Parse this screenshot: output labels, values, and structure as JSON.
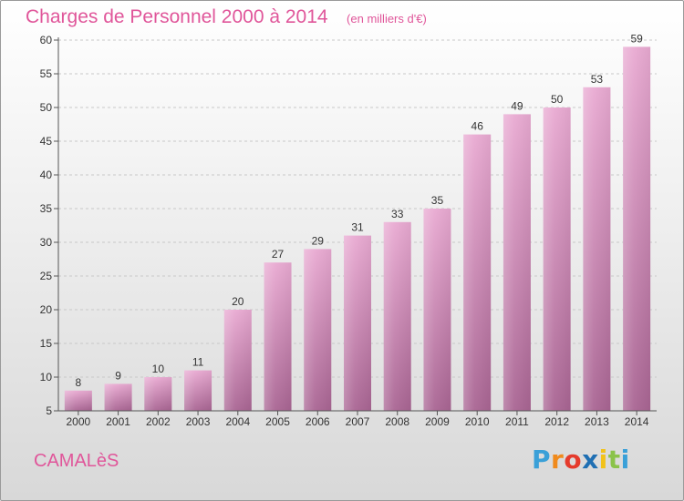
{
  "header": {
    "title": "Charges de Personnel 2000 à 2014",
    "subtitle": "(en milliers d'€)"
  },
  "footer": {
    "commune": "CAMALèS",
    "brand": {
      "letters": [
        "P",
        "r",
        "o",
        "x",
        "i",
        "t",
        "i"
      ],
      "colors": [
        "#3aa0d8",
        "#f08a1c",
        "#e53b2c",
        "#1f6fb3",
        "#f2c21a",
        "#8bc34a",
        "#3aa0d8"
      ]
    }
  },
  "colors": {
    "bar_light": "#e9aad2",
    "bar_dark": "#a96593",
    "axis": "#555555",
    "grid": "#c8c8c8",
    "label": "#333333"
  },
  "chart_data": {
    "type": "bar",
    "categories": [
      "2000",
      "2001",
      "2002",
      "2003",
      "2004",
      "2005",
      "2006",
      "2007",
      "2008",
      "2009",
      "2010",
      "2011",
      "2012",
      "2013",
      "2014"
    ],
    "values": [
      8,
      9,
      10,
      11,
      20,
      27,
      29,
      31,
      33,
      35,
      46,
      49,
      50,
      53,
      59
    ],
    "title": "Charges de Personnel 2000 à 2014",
    "ylim": [
      5,
      60
    ],
    "yticks": [
      5,
      10,
      15,
      20,
      25,
      30,
      35,
      40,
      45,
      50,
      55,
      60
    ],
    "grid": true,
    "legend": "none"
  }
}
